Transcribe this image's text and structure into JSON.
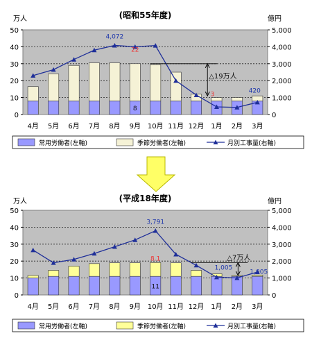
{
  "chart_data": [
    {
      "type": "bar",
      "title": "(昭和55年度)",
      "left_unit": "万人",
      "right_unit": "億円",
      "categories": [
        "4月",
        "5月",
        "6月",
        "7月",
        "8月",
        "9月",
        "10月",
        "11月",
        "12月",
        "1月",
        "2月",
        "3月"
      ],
      "ylim_left": [
        0,
        50
      ],
      "ylim_right": [
        0,
        5000
      ],
      "left_ticks": [
        "0",
        "10",
        "20",
        "30",
        "40",
        "50"
      ],
      "right_ticks": [
        "0",
        "1,000",
        "2,000",
        "3,000",
        "4,000",
        "5,000"
      ],
      "grid": true,
      "series": [
        {
          "name": "常用労働者(左軸)",
          "color": "#9999ff",
          "axis": "left",
          "kind": "bar",
          "values": [
            8,
            8,
            8,
            8,
            8,
            8,
            8,
            8,
            8,
            8,
            8,
            8
          ]
        },
        {
          "name": "季節労働者(左軸)",
          "color": "#f5f2d6",
          "axis": "left",
          "kind": "stacked-bar",
          "values": [
            8.5,
            16,
            21,
            22.5,
            22.5,
            22,
            21.5,
            17,
            4,
            2,
            2,
            3
          ]
        },
        {
          "name": "月別工事量(右軸)",
          "color": "#1f2f99",
          "axis": "right",
          "kind": "line",
          "values": [
            2300,
            2650,
            3250,
            3800,
            4080,
            4000,
            4072,
            2000,
            1150,
            450,
            420,
            720
          ]
        }
      ],
      "annotations": [
        {
          "text": "4,072",
          "color": "#1a33aa"
        },
        {
          "text": "22",
          "color": "#ee3333"
        },
        {
          "text": "8",
          "color": "#111111"
        },
        {
          "text": "△19万人",
          "color": "#111111"
        },
        {
          "text": "3",
          "color": "#ee3333"
        },
        {
          "text": "420",
          "color": "#1a33aa"
        }
      ]
    },
    {
      "type": "bar",
      "title": "(平成18年度)",
      "left_unit": "万人",
      "right_unit": "億円",
      "categories": [
        "4月",
        "5月",
        "6月",
        "7月",
        "8月",
        "9月",
        "10月",
        "11月",
        "12月",
        "1月",
        "2月",
        "3月"
      ],
      "ylim_left": [
        0,
        50
      ],
      "ylim_right": [
        0,
        5000
      ],
      "left_ticks": [
        "0",
        "10",
        "20",
        "30",
        "40",
        "50"
      ],
      "right_ticks": [
        "0",
        "1,000",
        "2,000",
        "3,000",
        "4,000",
        "5,000"
      ],
      "grid": true,
      "series": [
        {
          "name": "常用労働者(左軸)",
          "color": "#9999ff",
          "axis": "left",
          "kind": "bar",
          "values": [
            10,
            11,
            11,
            11,
            11,
            11,
            11,
            11,
            11,
            11,
            11,
            11
          ]
        },
        {
          "name": "季節労働者(左軸)",
          "color": "#ffff99",
          "axis": "left",
          "kind": "stacked-bar",
          "values": [
            1.5,
            3.5,
            6,
            7.5,
            8,
            8,
            8.1,
            8,
            3.5,
            1.5,
            0.5,
            0.7
          ]
        },
        {
          "name": "月別工事量(右軸)",
          "color": "#1f2f99",
          "axis": "right",
          "kind": "line",
          "values": [
            2650,
            1900,
            2100,
            2450,
            2850,
            3250,
            3791,
            2400,
            1750,
            1050,
            1005,
            1350
          ]
        }
      ],
      "annotations": [
        {
          "text": "3,791",
          "color": "#1a33aa"
        },
        {
          "text": "8.1",
          "color": "#ee3333"
        },
        {
          "text": "11",
          "color": "#111111"
        },
        {
          "text": "△7万人",
          "color": "#111111"
        },
        {
          "text": "1,005",
          "color": "#1a33aa"
        },
        {
          "text": "0.7",
          "color": "#ee3333"
        }
      ]
    }
  ],
  "arrow_color": "#ffff66"
}
